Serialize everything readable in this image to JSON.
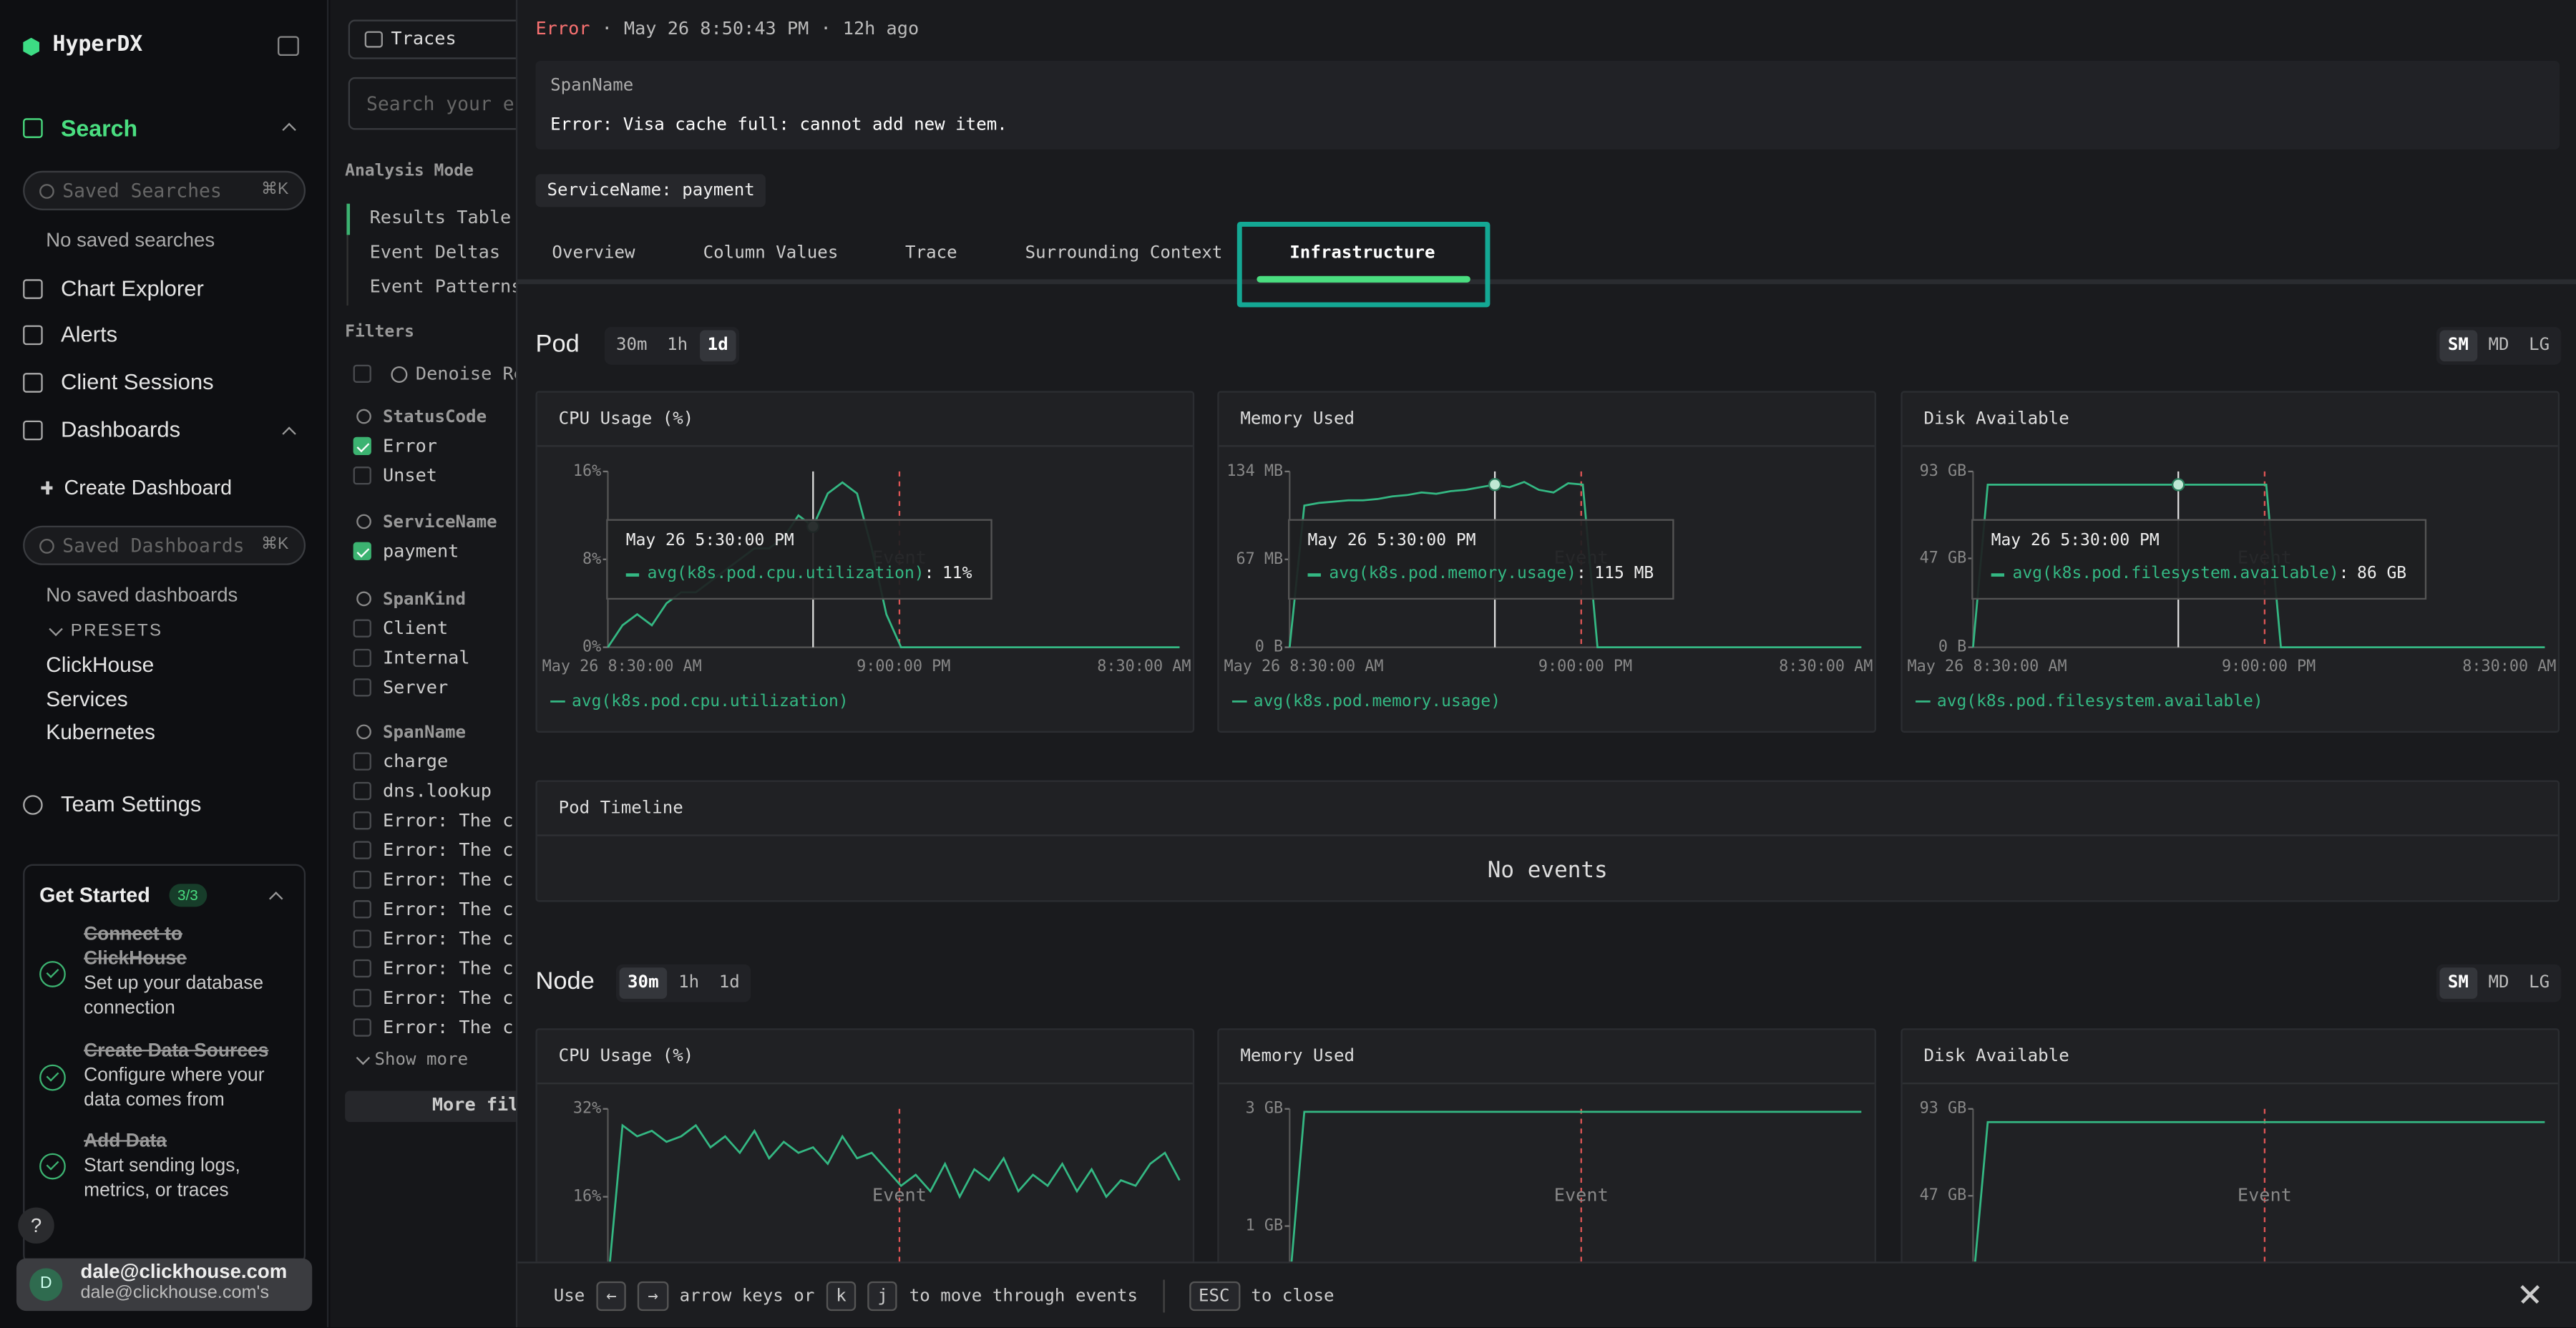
{
  "sidebar": {
    "brand": "HyperDX",
    "search": "Search",
    "saved_searches_placeholder": "Saved Searches",
    "saved_searches_shortcut": "⌘K",
    "no_saved_searches": "No saved searches",
    "nav": [
      "Chart Explorer",
      "Alerts",
      "Client Sessions",
      "Dashboards"
    ],
    "create_dashboard": "Create Dashboard",
    "saved_dashboards_placeholder": "Saved Dashboards",
    "saved_dashboards_shortcut": "⌘K",
    "no_saved_dashboards": "No saved dashboards",
    "presets_label": "PRESETS",
    "presets": [
      "ClickHouse",
      "Services",
      "Kubernetes"
    ],
    "team_settings": "Team Settings",
    "get_started": {
      "title": "Get Started",
      "badge": "3/3",
      "steps": [
        {
          "title": "Connect to ClickHouse",
          "description": "Set up your database connection"
        },
        {
          "title": "Create Data Sources",
          "description": "Configure where your data comes from"
        },
        {
          "title": "Add Data",
          "description": "Start sending logs, metrics, or traces"
        }
      ]
    },
    "help": "?",
    "user": {
      "avatar": "D",
      "email": "dale@clickhouse.com",
      "team": "dale@clickhouse.com's"
    }
  },
  "search_panel": {
    "source": "Traces",
    "search_placeholder": "Search your e",
    "analysis_mode_label": "Analysis Mode",
    "analysis_modes": [
      "Results Table",
      "Event Deltas",
      "Event Patterns"
    ],
    "filters_label": "Filters",
    "denoise": "Denoise Re",
    "filter_groups": [
      {
        "name": "StatusCode",
        "options": [
          {
            "label": "Error",
            "checked": true
          },
          {
            "label": "Unset",
            "checked": false
          }
        ]
      },
      {
        "name": "ServiceName",
        "options": [
          {
            "label": "payment",
            "checked": true
          }
        ]
      },
      {
        "name": "SpanKind",
        "options": [
          {
            "label": "Client",
            "checked": false
          },
          {
            "label": "Internal",
            "checked": false
          },
          {
            "label": "Server",
            "checked": false
          }
        ]
      },
      {
        "name": "SpanName",
        "options": [
          {
            "label": "charge",
            "checked": false
          },
          {
            "label": "dns.lookup",
            "checked": false
          },
          {
            "label": "Error: The cr",
            "checked": false
          },
          {
            "label": "Error: The cr",
            "checked": false
          },
          {
            "label": "Error: The cr",
            "checked": false
          },
          {
            "label": "Error: The cr",
            "checked": false
          },
          {
            "label": "Error: The cr",
            "checked": false
          },
          {
            "label": "Error: The cr",
            "checked": false
          },
          {
            "label": "Error: The cr",
            "checked": false
          },
          {
            "label": "Error: The cr",
            "checked": false
          }
        ]
      }
    ],
    "show_more": "Show more",
    "more_filters": "More fil"
  },
  "drawer": {
    "level": "Error",
    "separator": "·",
    "timestamp": "May 26 8:50:43 PM",
    "relative_time": "12h ago",
    "span_name_label": "SpanName",
    "span_name": "Error: Visa cache full: cannot add new item.",
    "service_tag": "ServiceName: payment",
    "tabs": [
      "Overview",
      "Column Values",
      "Trace",
      "Surrounding Context",
      "Infrastructure"
    ],
    "active_tab": 4,
    "pod": {
      "title": "Pod",
      "ranges": [
        "30m",
        "1h",
        "1d"
      ],
      "active_range": 2,
      "sizes": [
        "SM",
        "MD",
        "LG"
      ],
      "active_size": 0,
      "charts": [
        {
          "type": "line",
          "title": "CPU Usage (%)",
          "color": "#34b883",
          "ylim": [
            0,
            16
          ],
          "yticks": [
            {
              "value": 0,
              "label": "0%"
            },
            {
              "value": 8,
              "label": "8%"
            },
            {
              "value": 16,
              "label": "16%"
            }
          ],
          "xtick_labels": [
            "May 26 8:30:00 AM",
            "9:00:00 PM",
            "8:30:00 AM"
          ],
          "values": [
            0,
            2,
            3,
            2,
            4,
            5,
            5,
            6,
            7,
            8,
            9,
            9,
            10,
            12,
            11,
            14,
            15,
            14,
            9,
            3,
            0,
            0,
            0,
            0,
            0,
            0,
            0,
            0,
            0,
            0,
            0,
            0,
            0,
            0,
            0,
            0,
            0,
            0,
            0,
            0
          ],
          "legend": "avg(k8s.pod.cpu.utilization)",
          "event_label": "Event",
          "tooltip": {
            "time": "May 26 5:30:00 PM",
            "series": "avg(k8s.pod.cpu.utilization)",
            "separator": ":",
            "value_label": "11%"
          }
        },
        {
          "type": "line",
          "title": "Memory Used",
          "color": "#34b883",
          "ylim": [
            0,
            134
          ],
          "yticks": [
            {
              "value": 0,
              "label": "0 B"
            },
            {
              "value": 67,
              "label": "67 MB"
            },
            {
              "value": 134,
              "label": "134 MB"
            }
          ],
          "xtick_labels": [
            "May 26 8:30:00 AM",
            "9:00:00 PM",
            "8:30:00 AM"
          ],
          "values": [
            0,
            108,
            110,
            111,
            112,
            112,
            113,
            115,
            116,
            118,
            117,
            119,
            120,
            122,
            124,
            122,
            126,
            120,
            118,
            125,
            124,
            0,
            0,
            0,
            0,
            0,
            0,
            0,
            0,
            0,
            0,
            0,
            0,
            0,
            0,
            0,
            0,
            0,
            0,
            0
          ],
          "legend": "avg(k8s.pod.memory.usage)",
          "event_label": "Event",
          "tooltip": {
            "time": "May 26 5:30:00 PM",
            "series": "avg(k8s.pod.memory.usage)",
            "separator": ":",
            "value_label": "115 MB"
          }
        },
        {
          "type": "line",
          "title": "Disk Available",
          "color": "#34b883",
          "ylim": [
            0,
            93
          ],
          "yticks": [
            {
              "value": 0,
              "label": "0 B"
            },
            {
              "value": 47,
              "label": "47 GB"
            },
            {
              "value": 93,
              "label": "93 GB"
            }
          ],
          "xtick_labels": [
            "May 26 8:30:00 AM",
            "9:00:00 PM",
            "8:30:00 AM"
          ],
          "values": [
            0,
            86,
            86,
            86,
            86,
            86,
            86,
            86,
            86,
            86,
            86,
            86,
            86,
            86,
            86,
            86,
            86,
            86,
            86,
            86,
            86,
            0,
            0,
            0,
            0,
            0,
            0,
            0,
            0,
            0,
            0,
            0,
            0,
            0,
            0,
            0,
            0,
            0,
            0,
            0
          ],
          "legend": "avg(k8s.pod.filesystem.available)",
          "event_label": "Event",
          "tooltip": {
            "time": "May 26 5:30:00 PM",
            "series": "avg(k8s.pod.filesystem.available)",
            "separator": ":",
            "value_label": "86 GB"
          }
        }
      ]
    },
    "pod_timeline": {
      "title": "Pod Timeline",
      "empty": "No events"
    },
    "node": {
      "title": "Node",
      "ranges": [
        "30m",
        "1h",
        "1d"
      ],
      "active_range": 0,
      "sizes": [
        "SM",
        "MD",
        "LG"
      ],
      "active_size": 0,
      "charts": [
        {
          "type": "line",
          "title": "CPU Usage (%)",
          "color": "#34b883",
          "ylim": [
            0,
            32
          ],
          "yticks": [
            {
              "value": 16,
              "label": "16%"
            },
            {
              "value": 32,
              "label": "32%"
            }
          ],
          "values": [
            0,
            29,
            27,
            28,
            26,
            27,
            29,
            25,
            27,
            24,
            28,
            23,
            26,
            24,
            25,
            22,
            27,
            23,
            24,
            21,
            18,
            20,
            17,
            22,
            16,
            21,
            19,
            23,
            17,
            20,
            18,
            22,
            17,
            21,
            16,
            19,
            18,
            22,
            24,
            19
          ],
          "event_label": "Event"
        },
        {
          "type": "line",
          "title": "Memory Used",
          "color": "#34b883",
          "ylim": [
            0,
            3
          ],
          "yticks": [
            {
              "value": 1,
              "label": "1 GB"
            },
            {
              "value": 3,
              "label": "3 GB"
            }
          ],
          "values": [
            0,
            2.95,
            2.95,
            2.95,
            2.95,
            2.95,
            2.95,
            2.95,
            2.95,
            2.95,
            2.95,
            2.95,
            2.95,
            2.95,
            2.95,
            2.95,
            2.95,
            2.95,
            2.95,
            2.95,
            2.95,
            2.95,
            2.95,
            2.95,
            2.95,
            2.95,
            2.95,
            2.95,
            2.95,
            2.95,
            2.95,
            2.95,
            2.95,
            2.95,
            2.95,
            2.95,
            2.95,
            2.95,
            2.95,
            2.95
          ],
          "event_label": "Event"
        },
        {
          "type": "line",
          "title": "Disk Available",
          "color": "#34b883",
          "ylim": [
            0,
            93
          ],
          "yticks": [
            {
              "value": 47,
              "label": "47 GB"
            },
            {
              "value": 93,
              "label": "93 GB"
            }
          ],
          "values": [
            0,
            86,
            86,
            86,
            86,
            86,
            86,
            86,
            86,
            86,
            86,
            86,
            86,
            86,
            86,
            86,
            86,
            86,
            86,
            86,
            86,
            86,
            86,
            86,
            86,
            86,
            86,
            86,
            86,
            86,
            86,
            86,
            86,
            86,
            86,
            86,
            86,
            86,
            86,
            86
          ],
          "event_label": "Event"
        }
      ]
    },
    "footer": {
      "use": "Use",
      "left_key": "←",
      "right_key": "→",
      "arrow_text": "arrow keys or",
      "k_key": "k",
      "j_key": "j",
      "move_text": "to move through events",
      "esc_key": "ESC",
      "close_text": "to close"
    }
  }
}
